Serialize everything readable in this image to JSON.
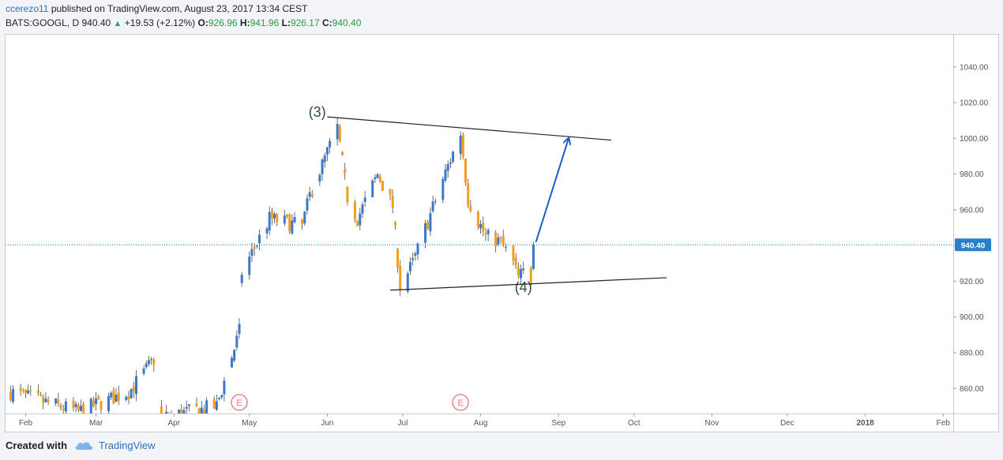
{
  "header": {
    "author": "ccerezo11",
    "published_text": "published on TradingView.com, August 23, 2017 13:34 CEST",
    "symbol": "BATS:GOOGL, D",
    "last": "940.40",
    "change": "+19.53 (+2.12%)",
    "open_label": "O:",
    "open": "926.96",
    "high_label": "H:",
    "high": "941.96",
    "low_label": "L:",
    "low": "926.17",
    "close_label": "C:",
    "close": "940.40"
  },
  "footer": {
    "created_with": "Created with",
    "brand": "TradingView"
  },
  "colors": {
    "up": "#3a78c9",
    "down": "#f39c1f",
    "price_line": "#2b7fc8",
    "arrow": "#1f5cc8",
    "earnings": "#e57373"
  },
  "chart_data": {
    "type": "candlestick",
    "symbol": "BATS:GOOGL",
    "interval": "D",
    "ylim": [
      846,
      1058
    ],
    "y_ticks": [
      "1040.00",
      "1020.00",
      "1000.00",
      "980.00",
      "960.00",
      "940.00",
      "920.00",
      "900.00",
      "880.00",
      "860.00"
    ],
    "x_ticks": [
      {
        "date": "2017-02-01",
        "label": "Feb"
      },
      {
        "date": "2017-03-01",
        "label": "Mar"
      },
      {
        "date": "2017-04-01",
        "label": "Apr"
      },
      {
        "date": "2017-05-01",
        "label": "May"
      },
      {
        "date": "2017-06-01",
        "label": "Jun"
      },
      {
        "date": "2017-07-01",
        "label": "Jul"
      },
      {
        "date": "2017-08-01",
        "label": "Aug"
      },
      {
        "date": "2017-09-01",
        "label": "Sep"
      },
      {
        "date": "2017-10-01",
        "label": "Oct"
      },
      {
        "date": "2017-11-01",
        "label": "Nov"
      },
      {
        "date": "2017-12-01",
        "label": "Dec"
      },
      {
        "date": "2018-01-01",
        "label": "2018"
      },
      {
        "date": "2018-02-01",
        "label": "Feb"
      }
    ],
    "x_range": [
      "2017-01-24",
      "2018-02-05"
    ],
    "last_price": 940.4,
    "last_price_label": "940.40",
    "anchors": [
      [
        "2017-01-26",
        858
      ],
      [
        "2017-02-22",
        847
      ],
      [
        "2017-03-14",
        858
      ],
      [
        "2017-03-24",
        876
      ],
      [
        "2017-03-27",
        844
      ],
      [
        "2017-04-18",
        850
      ],
      [
        "2017-04-26",
        887
      ],
      [
        "2017-04-27",
        892
      ],
      [
        "2017-04-28",
        925
      ],
      [
        "2017-05-09",
        955
      ],
      [
        "2017-05-22",
        951
      ],
      [
        "2017-05-25",
        968
      ],
      [
        "2017-06-05",
        1006
      ],
      [
        "2017-06-09",
        967
      ],
      [
        "2017-06-13",
        955
      ],
      [
        "2017-06-21",
        980
      ],
      [
        "2017-06-27",
        962
      ],
      [
        "2017-06-30",
        917
      ],
      [
        "2017-07-05",
        930
      ],
      [
        "2017-07-17",
        977
      ],
      [
        "2017-07-24",
        1003
      ],
      [
        "2017-07-27",
        966
      ],
      [
        "2017-08-03",
        945
      ],
      [
        "2017-08-09",
        942
      ],
      [
        "2017-08-14",
        930
      ],
      [
        "2017-08-16",
        922
      ],
      [
        "2017-08-18",
        925
      ],
      [
        "2017-08-21",
        922
      ],
      [
        "2017-08-22",
        940
      ]
    ],
    "candles": [
      {
        "date": "2017-08-22",
        "open": 926.96,
        "high": 941.96,
        "low": 926.17,
        "close": 940.4
      }
    ],
    "annotations": [
      {
        "type": "label",
        "text": "(3)",
        "date": "2017-05-28",
        "price": 1012
      },
      {
        "type": "label",
        "text": "(4)",
        "date": "2017-08-18",
        "price": 914
      },
      {
        "type": "trendline",
        "from": {
          "date": "2017-06-01",
          "price": 1012
        },
        "to": {
          "date": "2017-09-22",
          "price": 999
        }
      },
      {
        "type": "trendline",
        "from": {
          "date": "2017-06-26",
          "price": 915
        },
        "to": {
          "date": "2017-10-14",
          "price": 922
        }
      },
      {
        "type": "arrow",
        "from": {
          "date": "2017-08-23",
          "price": 942
        },
        "to": {
          "date": "2017-09-05",
          "price": 1000
        }
      },
      {
        "type": "earnings",
        "text": "E",
        "date": "2017-04-27"
      },
      {
        "type": "earnings",
        "text": "E",
        "date": "2017-07-24"
      }
    ]
  }
}
